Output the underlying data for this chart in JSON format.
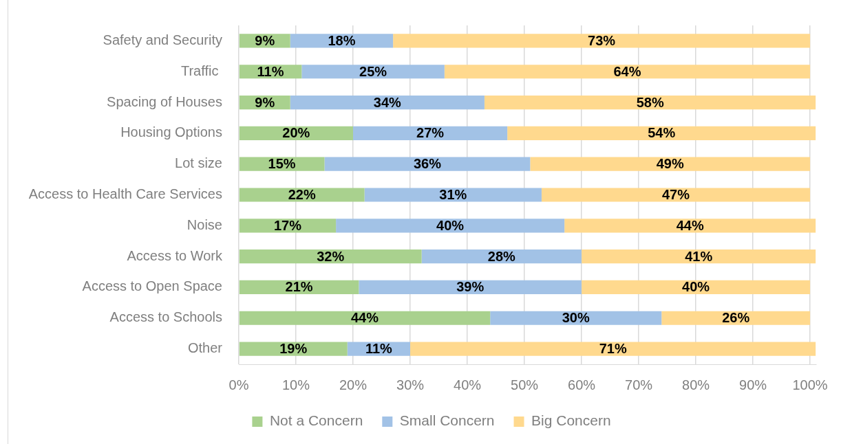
{
  "chart_data": {
    "type": "bar",
    "orientation": "horizontal",
    "stacked": true,
    "categories": [
      "Safety and Security",
      "Traffic ",
      "Spacing of Houses",
      "Housing Options",
      "Lot size",
      "Access to Health Care Services",
      "Noise",
      "Access to Work",
      "Access to Open Space",
      "Access to Schools",
      "Other"
    ],
    "series": [
      {
        "name": "Not a Concern",
        "color": "#a9d18e",
        "values": [
          9,
          11,
          9,
          20,
          15,
          22,
          17,
          32,
          21,
          44,
          19
        ],
        "value_labels": [
          "9%",
          "11%",
          "9%",
          "20%",
          "15%",
          "22%",
          "17%",
          "32%",
          "21%",
          "44%",
          "19%"
        ]
      },
      {
        "name": "Small Concern",
        "color": "#a2c2e6",
        "values": [
          18,
          25,
          34,
          27,
          36,
          31,
          40,
          28,
          39,
          30,
          11
        ],
        "value_labels": [
          "18%",
          "25%",
          "34%",
          "27%",
          "36%",
          "31%",
          "40%",
          "28%",
          "39%",
          "30%",
          "11%"
        ]
      },
      {
        "name": "Big Concern",
        "color": "#ffd98e",
        "values": [
          73,
          64,
          58,
          54,
          49,
          47,
          44,
          41,
          40,
          26,
          71
        ],
        "value_labels": [
          "73%",
          "64%",
          "58%",
          "54%",
          "49%",
          "47%",
          "44%",
          "41%",
          "40%",
          "26%",
          "71%"
        ]
      }
    ],
    "xlim": [
      0,
      101
    ],
    "xticks": [
      {
        "value": 0,
        "label": "0%"
      },
      {
        "value": 10,
        "label": "10%"
      },
      {
        "value": 20,
        "label": "20%"
      },
      {
        "value": 30,
        "label": "30%"
      },
      {
        "value": 40,
        "label": "40%"
      },
      {
        "value": 50,
        "label": "50%"
      },
      {
        "value": 60,
        "label": "60%"
      },
      {
        "value": 70,
        "label": "70%"
      },
      {
        "value": 80,
        "label": "80%"
      },
      {
        "value": 90,
        "label": "90%"
      },
      {
        "value": 100,
        "label": "100%"
      }
    ],
    "grid": "x",
    "legend": "bottom"
  }
}
